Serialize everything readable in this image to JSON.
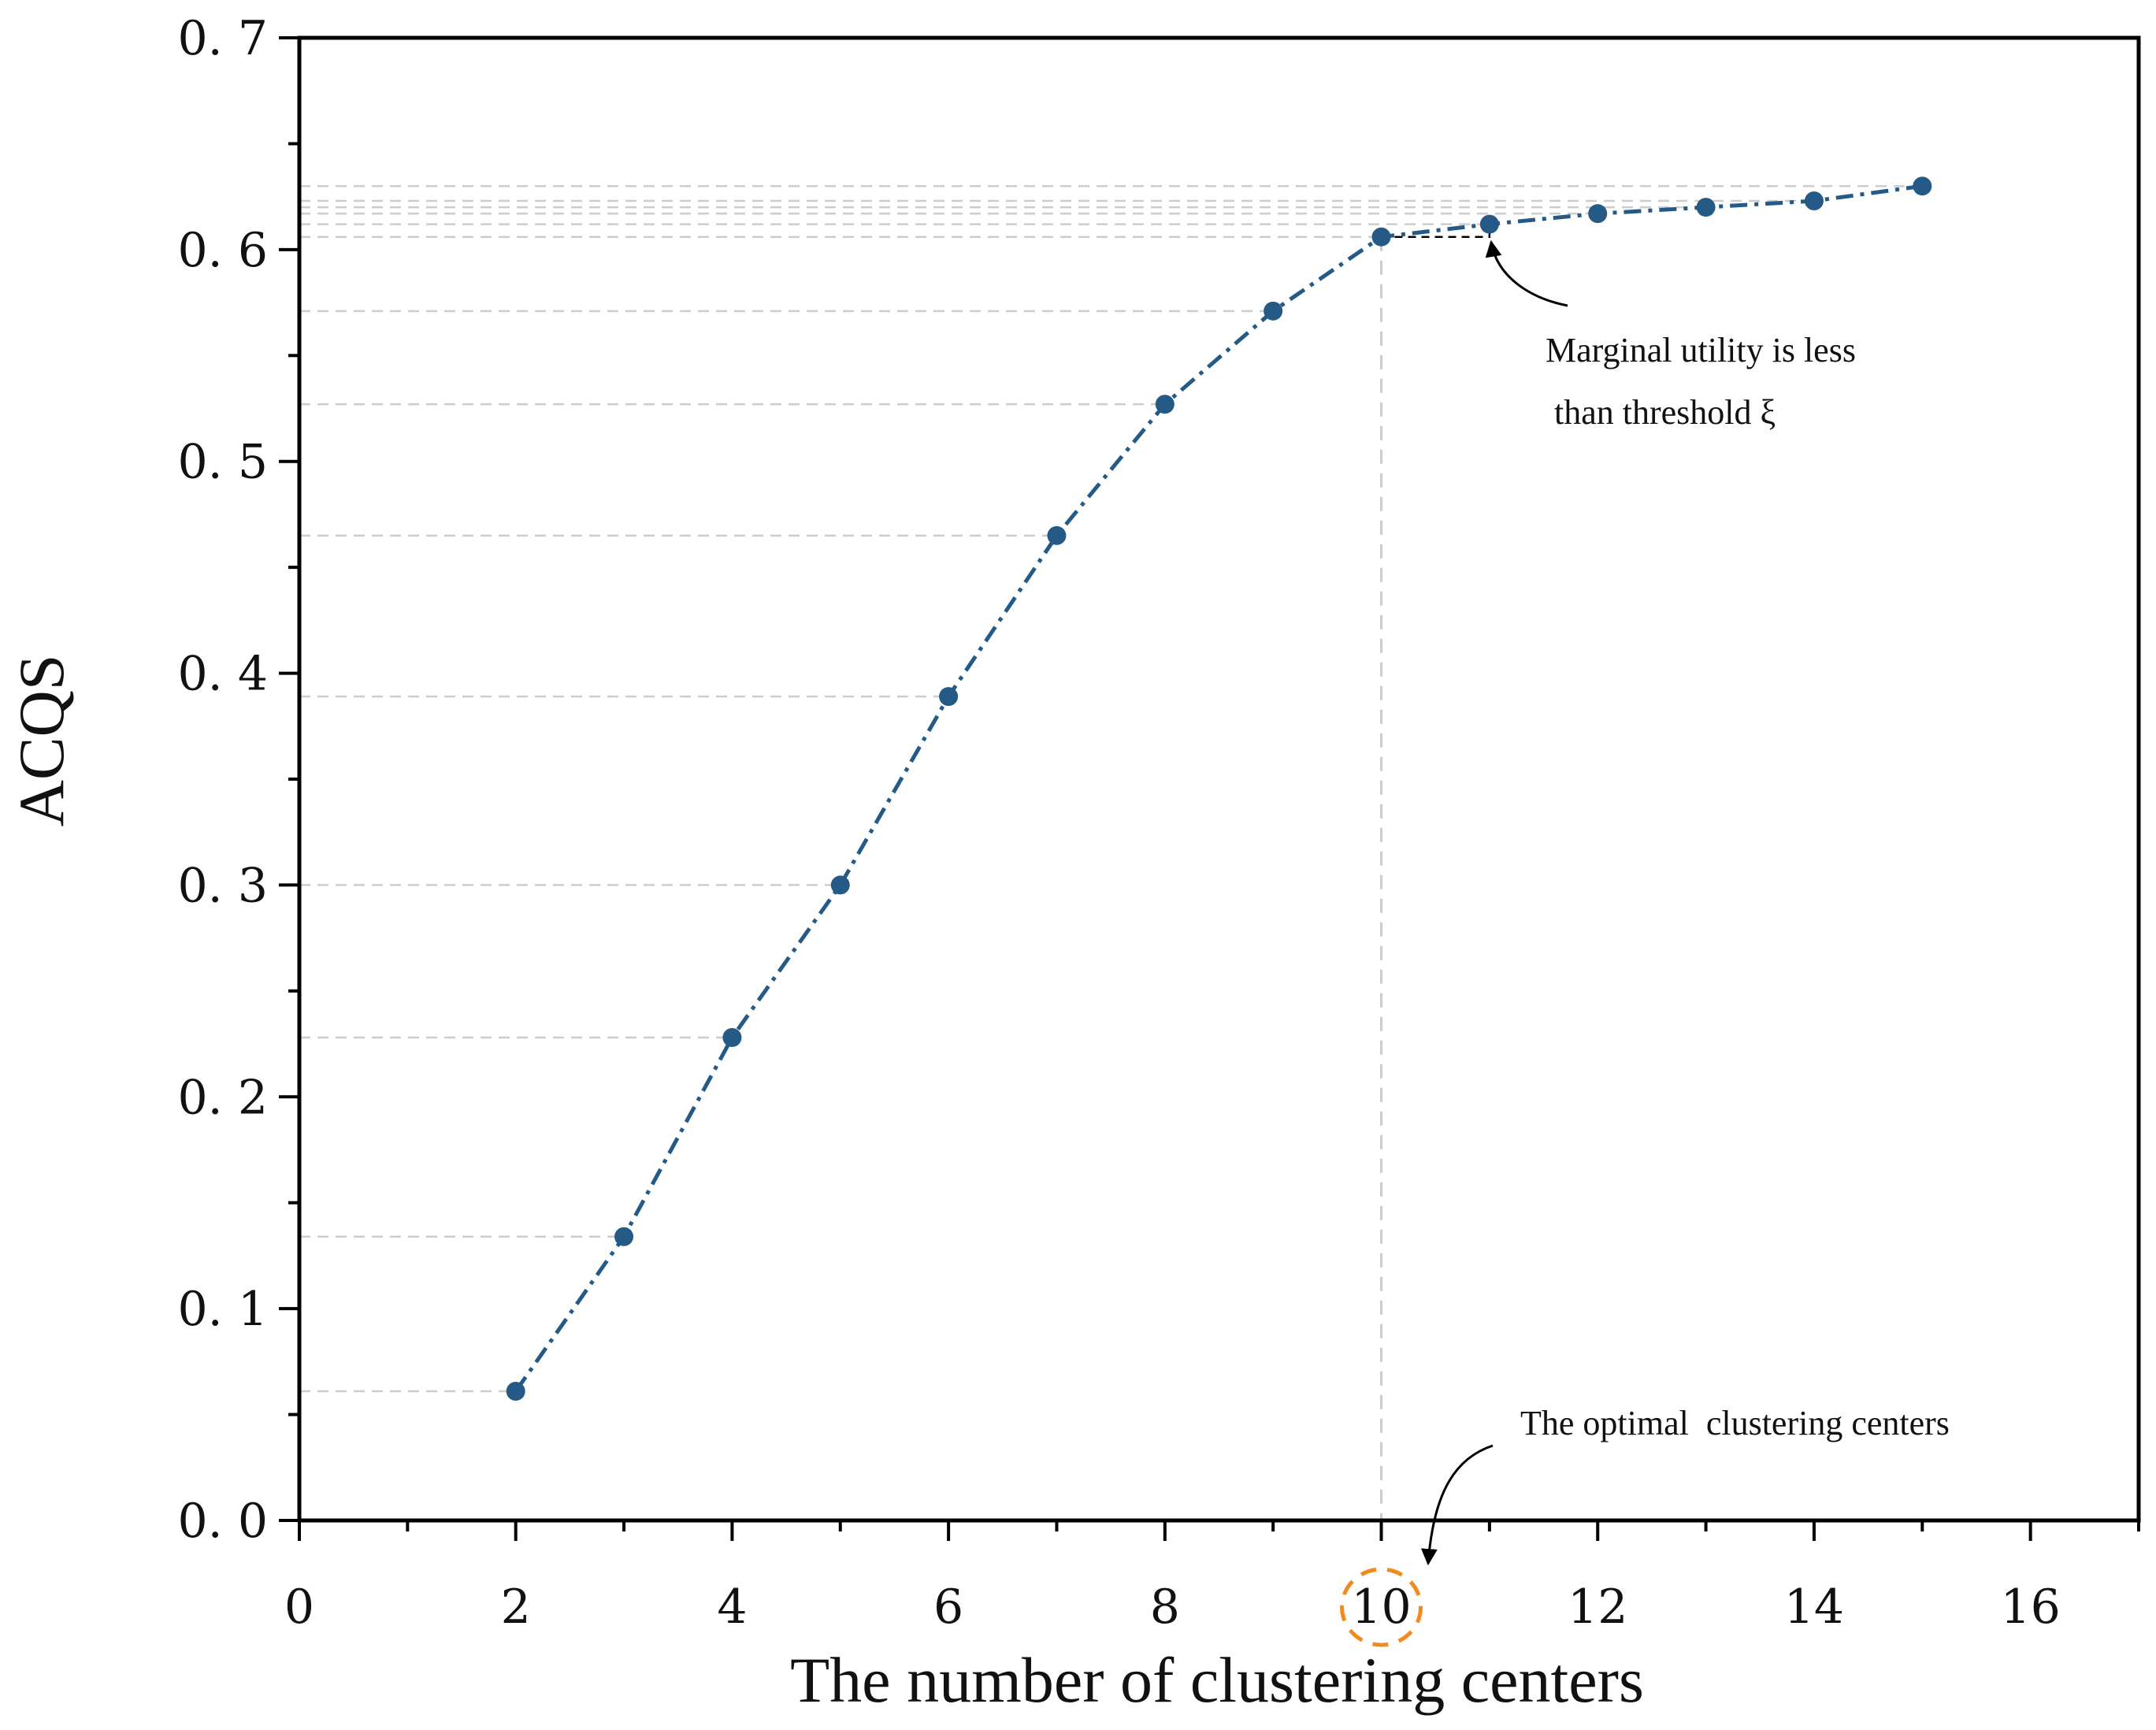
{
  "chart_data": {
    "type": "line",
    "title": "",
    "xlabel": "The number of clustering centers",
    "ylabel": "ACQS",
    "xlim": [
      0,
      17
    ],
    "ylim": [
      0,
      0.7
    ],
    "x_ticks": [
      0,
      2,
      4,
      6,
      8,
      10,
      12,
      14,
      16
    ],
    "x_tick_labels": [
      "0",
      "2",
      "4",
      "6",
      "8",
      "10",
      "12",
      "14",
      "16"
    ],
    "y_ticks": [
      0.0,
      0.1,
      0.2,
      0.3,
      0.4,
      0.5,
      0.6,
      0.7
    ],
    "y_tick_labels": [
      "0. 0",
      "0. 1",
      "0. 2",
      "0. 3",
      "0. 4",
      "0. 5",
      "0. 6",
      "0. 7"
    ],
    "grid": false,
    "series": [
      {
        "name": "ACQS",
        "x": [
          2,
          3,
          4,
          5,
          6,
          7,
          8,
          9,
          10,
          11,
          12,
          13,
          14,
          15
        ],
        "values": [
          0.061,
          0.134,
          0.228,
          0.3,
          0.389,
          0.465,
          0.527,
          0.571,
          0.606,
          0.612,
          0.617,
          0.62,
          0.623,
          0.63
        ],
        "color": "#245a85",
        "line_style": "dash-dot",
        "marker": "circle"
      }
    ],
    "optimal_k": 10,
    "annotations": [
      {
        "text_lines": [
          "Marginal utility is less",
          " than threshold ξ"
        ],
        "points_to": {
          "x": 11,
          "y": 0.606
        }
      },
      {
        "text_lines": [
          "The optimal  clustering centers"
        ],
        "points_to": {
          "x": 10,
          "y": 0
        }
      }
    ],
    "colors": {
      "series": "#245a85",
      "reference_lines": "#cccccc",
      "highlight_circle": "#f28a1e",
      "axes": "#000000"
    }
  }
}
